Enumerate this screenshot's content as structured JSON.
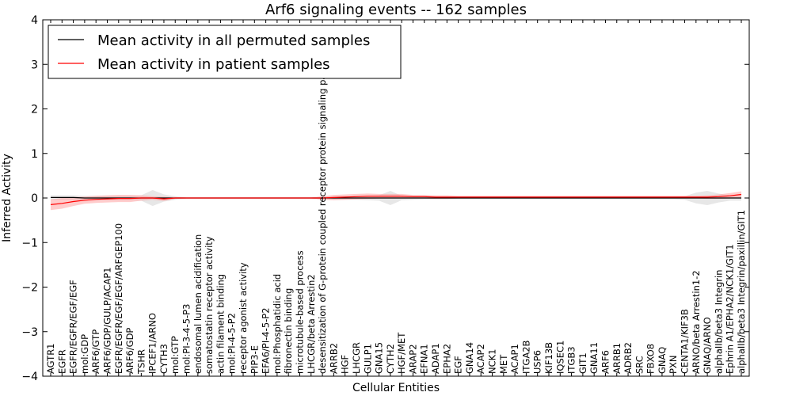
{
  "chart_data": {
    "type": "line",
    "title": "Arf6 signaling events -- 162 samples",
    "xlabel": "Cellular Entities",
    "ylabel": "Inferred Activity",
    "ylim": [
      -4,
      4
    ],
    "yticks": [
      "−4",
      "−3",
      "−2",
      "−1",
      "0",
      "1",
      "2",
      "3",
      "4"
    ],
    "grid": false,
    "legend_position": "top-left",
    "categories": [
      "AGTR1",
      "EGFR",
      "EGFR/EGFR/EGF/EGF",
      "mol:GDP",
      "ARF6/GTP",
      "ARF6/GDP/GULP/ACAP1",
      "EGFR/EGFR/EGF/EGF/ARFGEP100",
      "ARF6/GDP",
      "TSHR",
      "IPCEF1/ARNO",
      "CYTH3",
      "mol:GTP",
      "mol:PI-3-4-5-P3",
      "endosomal lumen acidification",
      "somatostatin receptor activity",
      "actin filament binding",
      "mol:PI-4-5-P2",
      "receptor agonist activity",
      "PIP3-E",
      "EFA6/PI-4-5-P2",
      "mol:Phosphatidic acid",
      "fibronectin binding",
      "microtubule-based process",
      "LHCGR/beta Arrestin2",
      "desensitization of G-protein coupled receptor protein signaling pathway",
      "ARRB2",
      "HGF",
      "LHCGR",
      "GULP1",
      "GNA15",
      "CYTH2",
      "HGF/MET",
      "ARAP2",
      "EFNA1",
      "ADAP1",
      "EPHA2",
      "EGF",
      "GNA14",
      "ACAP2",
      "NCK1",
      "MET",
      "ACAP1",
      "ITGA2B",
      "USP6",
      "KIF13B",
      "IQSEC1",
      "ITGB3",
      "GIT1",
      "GNA11",
      "ARF6",
      "ARRB1",
      "ADRB2",
      "SRC",
      "FBXO8",
      "GNAQ",
      "PXN",
      "CENTA1/KIF3B",
      "ARNO/beta Arrestin1-2",
      "GNAQ/ARNO",
      "alphaIIb/beta3 Integrin",
      "Ephrin A1/EPHA2/NCK1/GIT1",
      "alphaIIb/beta3 Integrin/paxillin/GIT1"
    ],
    "series": [
      {
        "name": "Mean activity in all permuted samples",
        "color": "#000000",
        "band_color": "#bbbbbb",
        "values": [
          0.01,
          0.01,
          0.01,
          0.0,
          0.0,
          0.0,
          0.0,
          0.0,
          0.0,
          0.0,
          0.0,
          0.0,
          0,
          0,
          0,
          0,
          0,
          0,
          0,
          0,
          0,
          0,
          0,
          0,
          0,
          0,
          0,
          0,
          0,
          0,
          0,
          0,
          0,
          0,
          0,
          0,
          0,
          0,
          0,
          0,
          0,
          0,
          0,
          0,
          0,
          0,
          0,
          0,
          0,
          0,
          0,
          0,
          0,
          0,
          0,
          0,
          0,
          0,
          0,
          0,
          0,
          0
        ],
        "band": [
          0.05,
          0.05,
          0.05,
          0.05,
          0.05,
          0.05,
          0.05,
          0.05,
          0.06,
          0.18,
          0.08,
          0.04,
          0.01,
          0.01,
          0.01,
          0.01,
          0.01,
          0.01,
          0.01,
          0.01,
          0.01,
          0.01,
          0.01,
          0.01,
          0.03,
          0.04,
          0.04,
          0.04,
          0.05,
          0.06,
          0.16,
          0.05,
          0.04,
          0.03,
          0.03,
          0.03,
          0.03,
          0.03,
          0.03,
          0.03,
          0.03,
          0.03,
          0.03,
          0.03,
          0.03,
          0.03,
          0.03,
          0.03,
          0.03,
          0.03,
          0.03,
          0.03,
          0.03,
          0.03,
          0.03,
          0.03,
          0.04,
          0.12,
          0.16,
          0.1,
          0.06,
          0.06
        ]
      },
      {
        "name": "Mean activity in patient samples",
        "color": "#ff0000",
        "band_color": "#ff9a9a",
        "values": [
          -0.15,
          -0.12,
          -0.08,
          -0.05,
          -0.03,
          -0.02,
          -0.01,
          -0.01,
          0.0,
          0.0,
          -0.02,
          0.0,
          0,
          0,
          0,
          0,
          0,
          0,
          0,
          0,
          0,
          0,
          0,
          0,
          0.0,
          0.01,
          0.02,
          0.03,
          0.04,
          0.04,
          0.04,
          0.04,
          0.03,
          0.03,
          0.02,
          0.02,
          0.02,
          0.02,
          0.02,
          0.02,
          0.02,
          0.02,
          0.02,
          0.02,
          0.02,
          0.02,
          0.02,
          0.02,
          0.02,
          0.02,
          0.02,
          0.02,
          0.02,
          0.02,
          0.02,
          0.02,
          0.02,
          0.02,
          0.02,
          0.03,
          0.05,
          0.08
        ],
        "band": [
          0.12,
          0.12,
          0.1,
          0.08,
          0.08,
          0.08,
          0.08,
          0.08,
          0.06,
          0.04,
          0.05,
          0.02,
          0.01,
          0.01,
          0.01,
          0.01,
          0.01,
          0.01,
          0.01,
          0.01,
          0.01,
          0.01,
          0.01,
          0.01,
          0.04,
          0.06,
          0.06,
          0.06,
          0.06,
          0.05,
          0.05,
          0.05,
          0.04,
          0.04,
          0.04,
          0.04,
          0.03,
          0.03,
          0.03,
          0.03,
          0.03,
          0.03,
          0.03,
          0.03,
          0.03,
          0.03,
          0.03,
          0.03,
          0.03,
          0.03,
          0.03,
          0.03,
          0.03,
          0.03,
          0.03,
          0.03,
          0.03,
          0.03,
          0.04,
          0.05,
          0.06,
          0.07
        ]
      }
    ]
  }
}
